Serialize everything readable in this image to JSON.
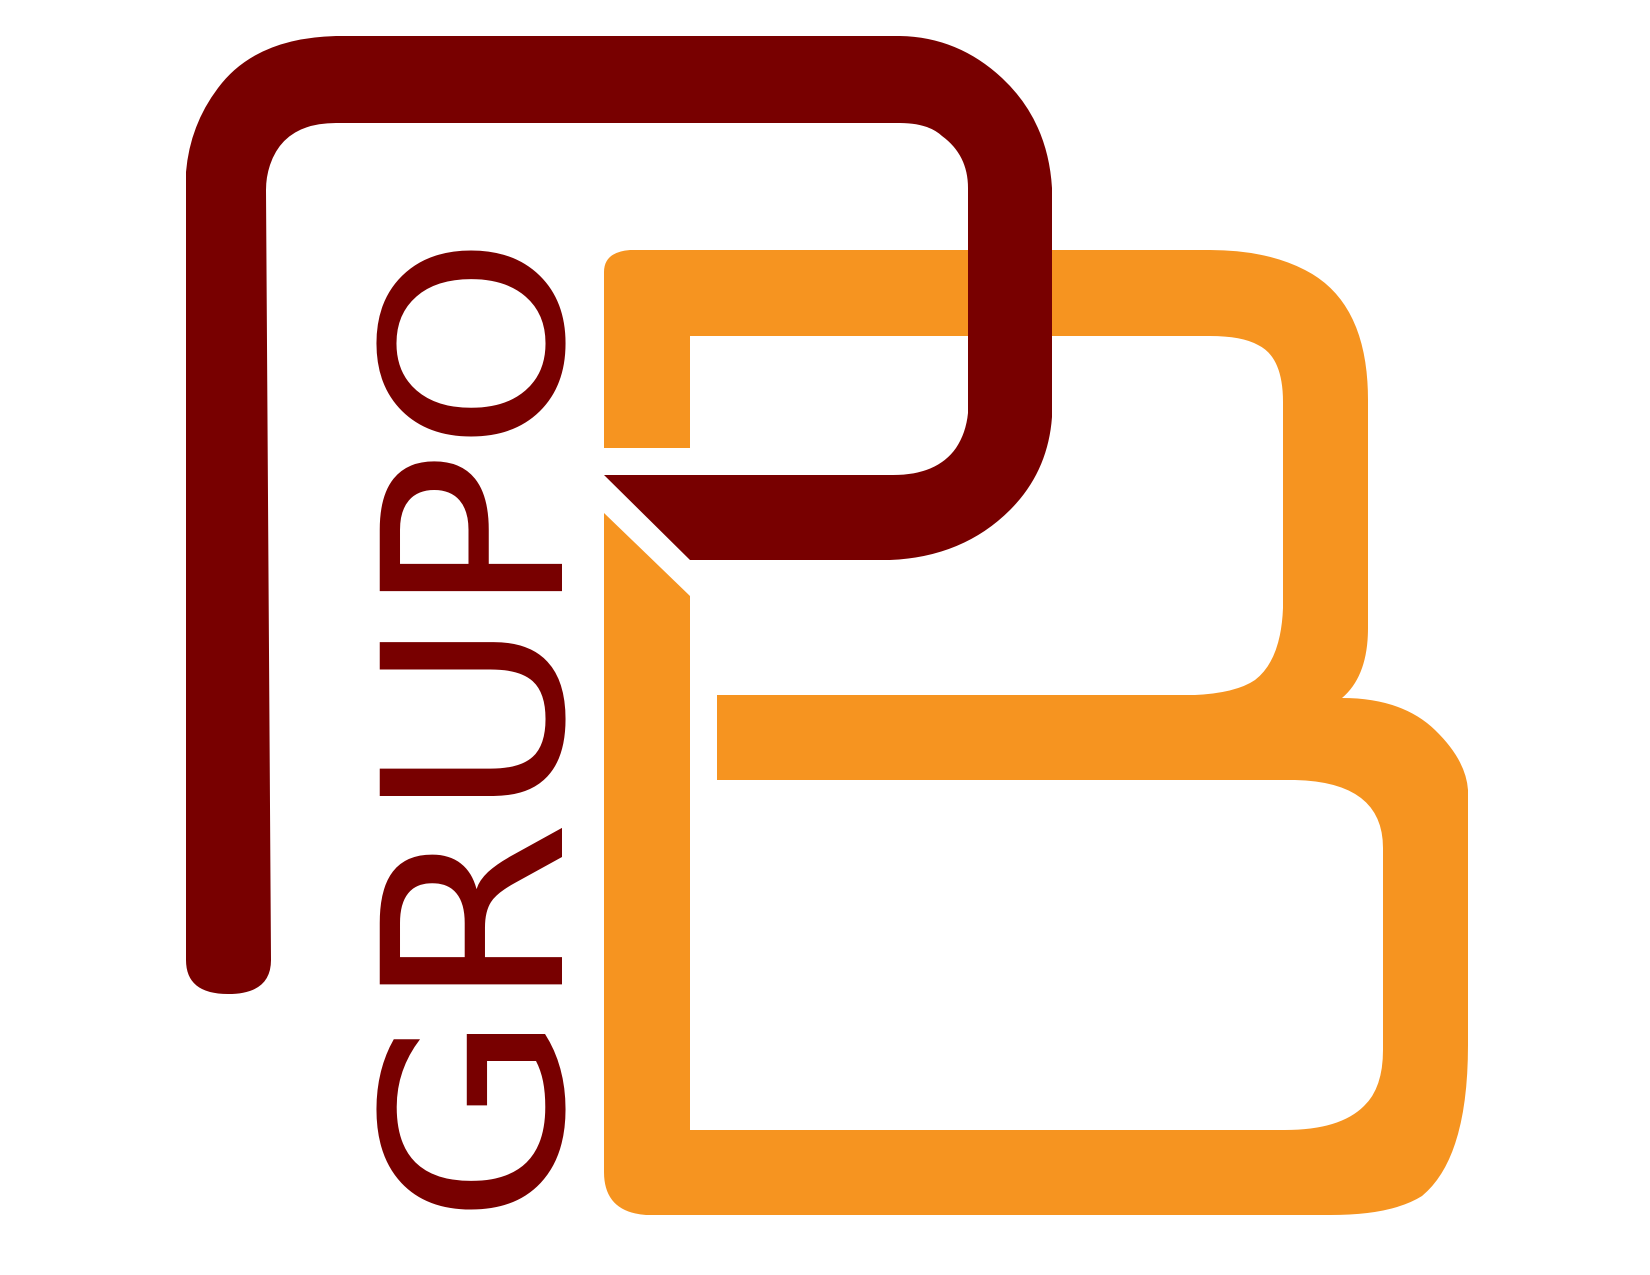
{
  "logo": {
    "wordmark": "GRUPO",
    "monogram": "B",
    "colors": {
      "maroon": "#780000",
      "orange": "#F69420",
      "background": "#FFFFFF"
    }
  }
}
